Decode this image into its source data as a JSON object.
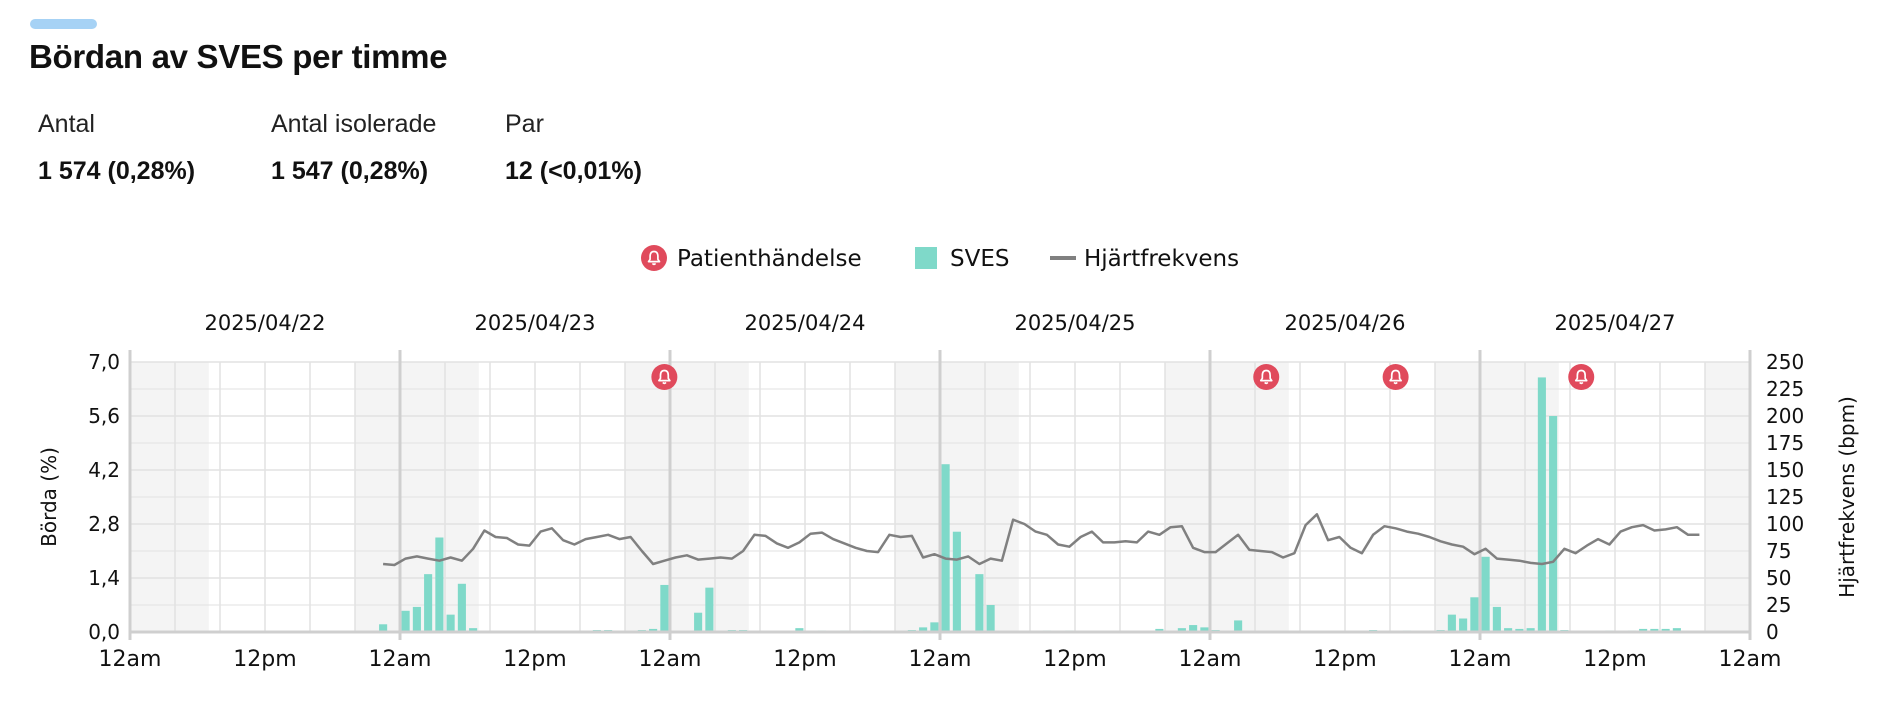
{
  "header": {
    "title": "Bördan av SVES per timme"
  },
  "stats": [
    {
      "label": "Antal",
      "value": "1 574 (0,28%)"
    },
    {
      "label": "Antal isolerade",
      "value": "1 547 (0,28%)"
    },
    {
      "label": "Par",
      "value": "12 (<0,01%)"
    }
  ],
  "colors": {
    "bar": "#7fd9c9",
    "line": "#808080",
    "event": "#e04a5c",
    "night": "#f4f4f4",
    "grid": "#e2e2e2",
    "axis": "#cfcfcf"
  },
  "chart_data": {
    "type": "bar+line",
    "legend": [
      {
        "label": "Patienthändelse",
        "kind": "event"
      },
      {
        "label": "SVES",
        "kind": "bar"
      },
      {
        "label": "Hjärtfrekvens",
        "kind": "line"
      }
    ],
    "dates": [
      "2025/04/22",
      "2025/04/23",
      "2025/04/24",
      "2025/04/25",
      "2025/04/26",
      "2025/04/27"
    ],
    "x_ticks": [
      "12am",
      "12pm",
      "12am",
      "12pm",
      "12am",
      "12pm",
      "12am",
      "12pm",
      "12am",
      "12pm",
      "12am",
      "12pm",
      "12am"
    ],
    "x_unit": "hours from 2025/04/22 12am",
    "x_range": [
      0,
      144
    ],
    "night_bands": [
      [
        0,
        7
      ],
      [
        20,
        31
      ],
      [
        44,
        55
      ],
      [
        68,
        79
      ],
      [
        92,
        103
      ],
      [
        116,
        127
      ],
      [
        140,
        144
      ]
    ],
    "y_left": {
      "label": "Börda (%)",
      "min": 0,
      "max": 7.0,
      "ticks": [
        "0,0",
        "1,4",
        "2,8",
        "4,2",
        "5,6",
        "7,0"
      ]
    },
    "y_right": {
      "label": "Hjärtfrekvens (bpm)",
      "min": 0,
      "max": 250,
      "ticks": [
        "0",
        "25",
        "50",
        "75",
        "100",
        "125",
        "150",
        "175",
        "200",
        "225",
        "250"
      ]
    },
    "sves_bars": [
      {
        "h": 22.5,
        "v": 0.2
      },
      {
        "h": 24.5,
        "v": 0.55
      },
      {
        "h": 25.5,
        "v": 0.65
      },
      {
        "h": 26.5,
        "v": 1.5
      },
      {
        "h": 27.5,
        "v": 2.45
      },
      {
        "h": 28.5,
        "v": 0.45
      },
      {
        "h": 29.5,
        "v": 1.25
      },
      {
        "h": 30.5,
        "v": 0.1
      },
      {
        "h": 41.5,
        "v": 0.05
      },
      {
        "h": 42.5,
        "v": 0.05
      },
      {
        "h": 45.5,
        "v": 0.05
      },
      {
        "h": 46.5,
        "v": 0.08
      },
      {
        "h": 47.5,
        "v": 1.22
      },
      {
        "h": 50.5,
        "v": 0.5
      },
      {
        "h": 51.5,
        "v": 1.15
      },
      {
        "h": 53.5,
        "v": 0.05
      },
      {
        "h": 54.5,
        "v": 0.05
      },
      {
        "h": 59.5,
        "v": 0.1
      },
      {
        "h": 61.5,
        "v": 0.04
      },
      {
        "h": 63.5,
        "v": 0.04
      },
      {
        "h": 65.5,
        "v": 0.04
      },
      {
        "h": 69.5,
        "v": 0.05
      },
      {
        "h": 70.5,
        "v": 0.12
      },
      {
        "h": 71.5,
        "v": 0.25
      },
      {
        "h": 72.5,
        "v": 4.35
      },
      {
        "h": 73.5,
        "v": 2.6
      },
      {
        "h": 75.5,
        "v": 1.5
      },
      {
        "h": 76.5,
        "v": 0.7
      },
      {
        "h": 81.5,
        "v": 0.04
      },
      {
        "h": 83.5,
        "v": 0.04
      },
      {
        "h": 91.5,
        "v": 0.08
      },
      {
        "h": 93.5,
        "v": 0.1
      },
      {
        "h": 94.5,
        "v": 0.18
      },
      {
        "h": 95.5,
        "v": 0.12
      },
      {
        "h": 96.5,
        "v": 0.05
      },
      {
        "h": 98.5,
        "v": 0.3
      },
      {
        "h": 110.5,
        "v": 0.05
      },
      {
        "h": 113.5,
        "v": 0.04
      },
      {
        "h": 116.5,
        "v": 0.05
      },
      {
        "h": 117.5,
        "v": 0.45
      },
      {
        "h": 118.5,
        "v": 0.35
      },
      {
        "h": 119.5,
        "v": 0.9
      },
      {
        "h": 120.5,
        "v": 1.95
      },
      {
        "h": 121.5,
        "v": 0.65
      },
      {
        "h": 122.5,
        "v": 0.1
      },
      {
        "h": 123.5,
        "v": 0.08
      },
      {
        "h": 124.5,
        "v": 0.1
      },
      {
        "h": 125.5,
        "v": 6.6
      },
      {
        "h": 126.5,
        "v": 5.6
      },
      {
        "h": 127.5,
        "v": 0.05
      },
      {
        "h": 131.5,
        "v": 0.04
      },
      {
        "h": 133.5,
        "v": 0.04
      },
      {
        "h": 134.5,
        "v": 0.08
      },
      {
        "h": 135.5,
        "v": 0.08
      },
      {
        "h": 136.5,
        "v": 0.08
      },
      {
        "h": 137.5,
        "v": 0.1
      }
    ],
    "heart_rate": [
      {
        "h": 22.5,
        "bpm": 63
      },
      {
        "h": 23.5,
        "bpm": 62
      },
      {
        "h": 24.5,
        "bpm": 68
      },
      {
        "h": 25.5,
        "bpm": 70
      },
      {
        "h": 26.5,
        "bpm": 68
      },
      {
        "h": 27.5,
        "bpm": 66
      },
      {
        "h": 28.5,
        "bpm": 69
      },
      {
        "h": 29.5,
        "bpm": 66
      },
      {
        "h": 30.5,
        "bpm": 77
      },
      {
        "h": 31.5,
        "bpm": 94
      },
      {
        "h": 32.5,
        "bpm": 88
      },
      {
        "h": 33.5,
        "bpm": 87
      },
      {
        "h": 34.5,
        "bpm": 81
      },
      {
        "h": 35.5,
        "bpm": 80
      },
      {
        "h": 36.5,
        "bpm": 93
      },
      {
        "h": 37.5,
        "bpm": 96
      },
      {
        "h": 38.5,
        "bpm": 85
      },
      {
        "h": 39.5,
        "bpm": 81
      },
      {
        "h": 40.5,
        "bpm": 86
      },
      {
        "h": 41.5,
        "bpm": 88
      },
      {
        "h": 42.5,
        "bpm": 90
      },
      {
        "h": 43.5,
        "bpm": 86
      },
      {
        "h": 44.5,
        "bpm": 88
      },
      {
        "h": 45.5,
        "bpm": 75
      },
      {
        "h": 46.5,
        "bpm": 63
      },
      {
        "h": 47.5,
        "bpm": 66
      },
      {
        "h": 48.5,
        "bpm": 69
      },
      {
        "h": 49.5,
        "bpm": 71
      },
      {
        "h": 50.5,
        "bpm": 67
      },
      {
        "h": 51.5,
        "bpm": 68
      },
      {
        "h": 52.5,
        "bpm": 69
      },
      {
        "h": 53.5,
        "bpm": 68
      },
      {
        "h": 54.5,
        "bpm": 75
      },
      {
        "h": 55.5,
        "bpm": 90
      },
      {
        "h": 56.5,
        "bpm": 89
      },
      {
        "h": 57.5,
        "bpm": 82
      },
      {
        "h": 58.5,
        "bpm": 78
      },
      {
        "h": 59.5,
        "bpm": 83
      },
      {
        "h": 60.5,
        "bpm": 91
      },
      {
        "h": 61.5,
        "bpm": 92
      },
      {
        "h": 62.5,
        "bpm": 86
      },
      {
        "h": 63.5,
        "bpm": 82
      },
      {
        "h": 64.5,
        "bpm": 78
      },
      {
        "h": 65.5,
        "bpm": 75
      },
      {
        "h": 66.5,
        "bpm": 74
      },
      {
        "h": 67.5,
        "bpm": 90
      },
      {
        "h": 68.5,
        "bpm": 88
      },
      {
        "h": 69.5,
        "bpm": 89
      },
      {
        "h": 70.5,
        "bpm": 69
      },
      {
        "h": 71.5,
        "bpm": 72
      },
      {
        "h": 72.5,
        "bpm": 68
      },
      {
        "h": 73.5,
        "bpm": 67
      },
      {
        "h": 74.5,
        "bpm": 70
      },
      {
        "h": 75.5,
        "bpm": 63
      },
      {
        "h": 76.5,
        "bpm": 68
      },
      {
        "h": 77.5,
        "bpm": 66
      },
      {
        "h": 78.5,
        "bpm": 104
      },
      {
        "h": 79.5,
        "bpm": 100
      },
      {
        "h": 80.5,
        "bpm": 93
      },
      {
        "h": 81.5,
        "bpm": 90
      },
      {
        "h": 82.5,
        "bpm": 81
      },
      {
        "h": 83.5,
        "bpm": 79
      },
      {
        "h": 84.5,
        "bpm": 88
      },
      {
        "h": 85.5,
        "bpm": 93
      },
      {
        "h": 86.5,
        "bpm": 83
      },
      {
        "h": 87.5,
        "bpm": 83
      },
      {
        "h": 88.5,
        "bpm": 84
      },
      {
        "h": 89.5,
        "bpm": 83
      },
      {
        "h": 90.5,
        "bpm": 93
      },
      {
        "h": 91.5,
        "bpm": 90
      },
      {
        "h": 92.5,
        "bpm": 97
      },
      {
        "h": 93.5,
        "bpm": 98
      },
      {
        "h": 94.5,
        "bpm": 78
      },
      {
        "h": 95.5,
        "bpm": 74
      },
      {
        "h": 96.5,
        "bpm": 74
      },
      {
        "h": 97.5,
        "bpm": 82
      },
      {
        "h": 98.5,
        "bpm": 90
      },
      {
        "h": 99.5,
        "bpm": 76
      },
      {
        "h": 100.5,
        "bpm": 75
      },
      {
        "h": 101.5,
        "bpm": 74
      },
      {
        "h": 102.5,
        "bpm": 69
      },
      {
        "h": 103.5,
        "bpm": 73
      },
      {
        "h": 104.5,
        "bpm": 99
      },
      {
        "h": 105.5,
        "bpm": 109
      },
      {
        "h": 106.5,
        "bpm": 85
      },
      {
        "h": 107.5,
        "bpm": 88
      },
      {
        "h": 108.5,
        "bpm": 78
      },
      {
        "h": 109.5,
        "bpm": 73
      },
      {
        "h": 110.5,
        "bpm": 90
      },
      {
        "h": 111.5,
        "bpm": 98
      },
      {
        "h": 112.5,
        "bpm": 96
      },
      {
        "h": 113.5,
        "bpm": 93
      },
      {
        "h": 114.5,
        "bpm": 91
      },
      {
        "h": 115.5,
        "bpm": 88
      },
      {
        "h": 116.5,
        "bpm": 84
      },
      {
        "h": 117.5,
        "bpm": 81
      },
      {
        "h": 118.5,
        "bpm": 79
      },
      {
        "h": 119.5,
        "bpm": 72
      },
      {
        "h": 120.5,
        "bpm": 77
      },
      {
        "h": 121.5,
        "bpm": 68
      },
      {
        "h": 122.5,
        "bpm": 67
      },
      {
        "h": 123.5,
        "bpm": 66
      },
      {
        "h": 124.5,
        "bpm": 64
      },
      {
        "h": 125.5,
        "bpm": 63
      },
      {
        "h": 126.5,
        "bpm": 65
      },
      {
        "h": 127.5,
        "bpm": 77
      },
      {
        "h": 128.5,
        "bpm": 73
      },
      {
        "h": 129.5,
        "bpm": 80
      },
      {
        "h": 130.5,
        "bpm": 86
      },
      {
        "h": 131.5,
        "bpm": 81
      },
      {
        "h": 132.5,
        "bpm": 93
      },
      {
        "h": 133.5,
        "bpm": 97
      },
      {
        "h": 134.5,
        "bpm": 99
      },
      {
        "h": 135.5,
        "bpm": 94
      },
      {
        "h": 136.5,
        "bpm": 95
      },
      {
        "h": 137.5,
        "bpm": 97
      },
      {
        "h": 138.5,
        "bpm": 90
      },
      {
        "h": 139.5,
        "bpm": 90
      }
    ],
    "patient_events": [
      {
        "h": 47.5
      },
      {
        "h": 101
      },
      {
        "h": 112.5
      },
      {
        "h": 129
      }
    ]
  }
}
